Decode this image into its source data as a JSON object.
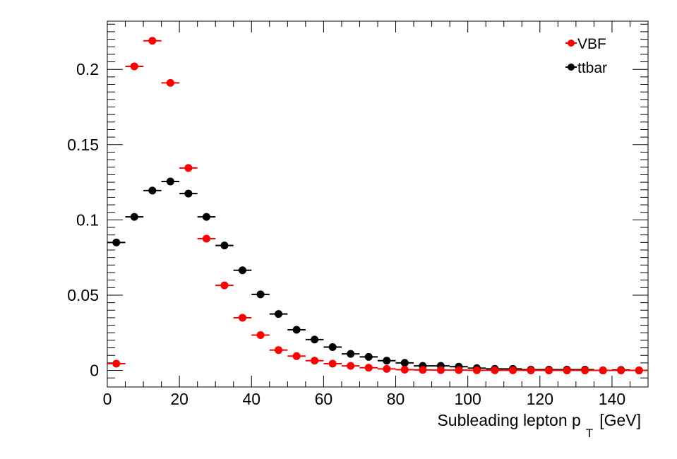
{
  "chart_data": {
    "type": "scatter",
    "title": "",
    "xlabel": "Subleading lepton p",
    "xlabel_subscript": "T",
    "xlabel_unit": "[GeV]",
    "ylabel": "",
    "xlim": [
      0,
      150
    ],
    "ylim": [
      -0.011,
      0.232
    ],
    "x_ticks": [
      "0",
      "20",
      "40",
      "60",
      "80",
      "100",
      "120",
      "140"
    ],
    "y_ticks": [
      "0",
      "0.05",
      "0.1",
      "0.15",
      "0.2"
    ],
    "bin_width": 5,
    "x": [
      2.5,
      7.5,
      12.5,
      17.5,
      22.5,
      27.5,
      32.5,
      37.5,
      42.5,
      47.5,
      52.5,
      57.5,
      62.5,
      67.5,
      72.5,
      77.5,
      82.5,
      87.5,
      92.5,
      97.5,
      102.5,
      107.5,
      112.5,
      117.5,
      122.5,
      127.5,
      132.5,
      137.5,
      142.5,
      147.5
    ],
    "legend_position": "top-right",
    "series": [
      {
        "name": "VBF",
        "color": "#ff0000",
        "values": [
          0.0045,
          0.202,
          0.219,
          0.191,
          0.1345,
          0.0875,
          0.0565,
          0.035,
          0.0235,
          0.0135,
          0.0095,
          0.0065,
          0.0045,
          0.003,
          0.0018,
          0.001,
          0.0005,
          0.0003,
          0.0002,
          0.0002,
          0.0001,
          0.0001,
          0.0001,
          0.0,
          0.0,
          0.0,
          0.0,
          0.0,
          0.0,
          0.0
        ]
      },
      {
        "name": "ttbar",
        "color": "#000000",
        "values": [
          0.085,
          0.102,
          0.1195,
          0.1255,
          0.1175,
          0.102,
          0.083,
          0.0665,
          0.0505,
          0.0375,
          0.027,
          0.0205,
          0.0155,
          0.011,
          0.009,
          0.0065,
          0.005,
          0.003,
          0.003,
          0.0025,
          0.0015,
          0.001,
          0.001,
          0.0005,
          0.0005,
          0.0005,
          0.0005,
          0.0,
          0.0003,
          0.0
        ]
      }
    ]
  }
}
